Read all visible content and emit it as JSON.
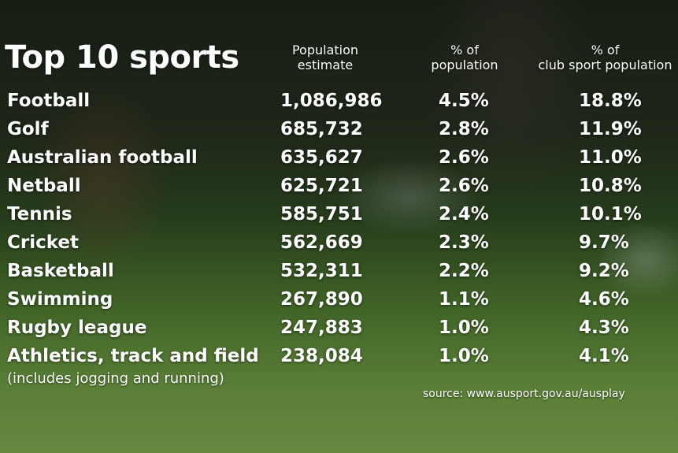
{
  "chart_data": {
    "type": "table",
    "title": "Top 10 sports",
    "columns": [
      "",
      "Population\nestimate",
      "% of\npopulation",
      "% of\nclub sport population"
    ],
    "header": {
      "population": [
        "Population",
        "estimate"
      ],
      "pct_population": [
        "% of",
        "population"
      ],
      "pct_club": [
        "% of",
        "club sport population"
      ]
    },
    "rows": [
      {
        "sport": "Football",
        "population": "1,086,986",
        "pct_population": "4.5%",
        "pct_club": "18.8%"
      },
      {
        "sport": "Golf",
        "population": "685,732",
        "pct_population": "2.8%",
        "pct_club": "11.9%"
      },
      {
        "sport": "Australian football",
        "population": "635,627",
        "pct_population": "2.6%",
        "pct_club": "11.0%"
      },
      {
        "sport": "Netball",
        "population": "625,721",
        "pct_population": "2.6%",
        "pct_club": "10.8%"
      },
      {
        "sport": "Tennis",
        "population": "585,751",
        "pct_population": "2.4%",
        "pct_club": "10.1%"
      },
      {
        "sport": "Cricket",
        "population": "562,669",
        "pct_population": "2.3%",
        "pct_club": "9.7%"
      },
      {
        "sport": "Basketball",
        "population": "532,311",
        "pct_population": "2.2%",
        "pct_club": "9.2%"
      },
      {
        "sport": "Swimming",
        "population": "267,890",
        "pct_population": "1.1%",
        "pct_club": "4.6%"
      },
      {
        "sport": "Rugby league",
        "population": "247,883",
        "pct_population": "1.0%",
        "pct_club": "4.3%"
      },
      {
        "sport": "Athletics, track and field",
        "population": "238,084",
        "pct_population": "1.0%",
        "pct_club": "4.1%"
      }
    ],
    "footnote": "(includes jogging and running)",
    "source": "source: www.ausport.gov.au/ausplay"
  }
}
